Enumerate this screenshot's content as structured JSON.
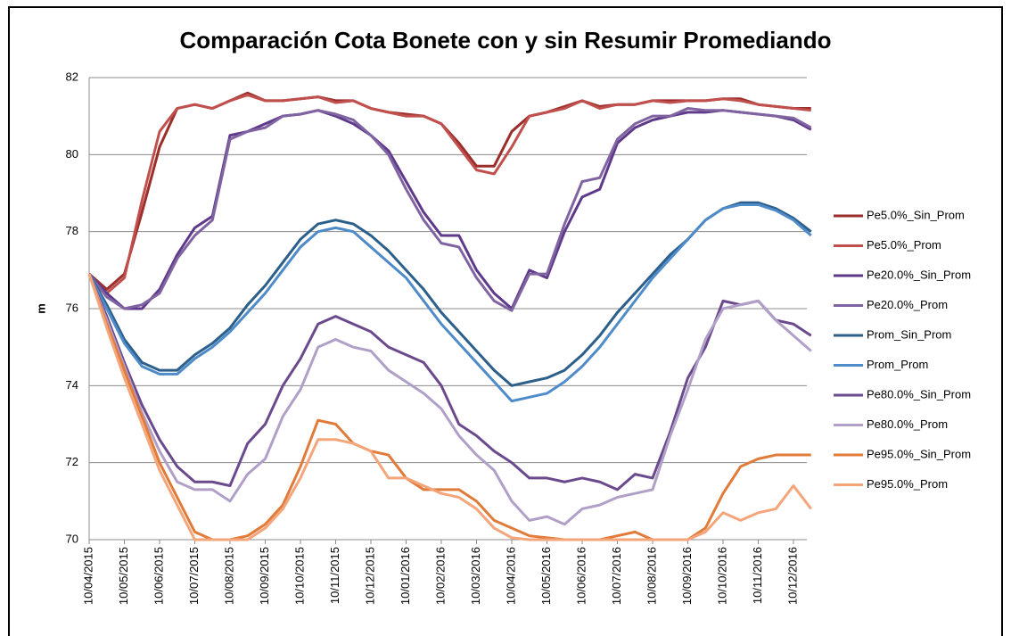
{
  "chart_data": {
    "type": "line",
    "title": "Comparación Cota Bonete con y sin Resumir Promediando",
    "ylabel": "m",
    "categories": [
      "10/04/2015",
      null,
      "10/05/2015",
      null,
      "10/06/2015",
      null,
      "10/07/2015",
      null,
      "10/08/2015",
      null,
      "10/09/2015",
      null,
      "10/10/2015",
      null,
      "10/11/2015",
      null,
      "10/12/2015",
      null,
      "10/01/2016",
      null,
      "10/02/2016",
      null,
      "10/03/2016",
      null,
      "10/04/2016",
      null,
      "10/05/2016",
      null,
      "10/06/2016",
      null,
      "10/07/2016",
      null,
      "10/08/2016",
      null,
      "10/09/2016",
      null,
      "10/10/2016",
      null,
      "10/11/2016",
      null,
      "10/12/2016",
      null
    ],
    "ylim": [
      70,
      82
    ],
    "yticks": [
      70,
      72,
      74,
      76,
      78,
      80,
      82
    ],
    "grid": true,
    "legend": "right",
    "series": [
      {
        "name": "Pe5.0%_Sin_Prom",
        "color": "#9b2d2a",
        "values": [
          76.9,
          76.5,
          76.9,
          78.5,
          80.2,
          81.2,
          81.3,
          81.2,
          81.4,
          81.6,
          81.4,
          81.4,
          81.45,
          81.5,
          81.4,
          81.4,
          81.2,
          81.1,
          81.05,
          81.0,
          80.8,
          80.3,
          79.7,
          79.7,
          80.6,
          81.0,
          81.1,
          81.25,
          81.4,
          81.25,
          81.3,
          81.3,
          81.4,
          81.4,
          81.4,
          81.4,
          81.45,
          81.45,
          81.3,
          81.25,
          81.2,
          81.2
        ]
      },
      {
        "name": "Pe5.0%_Prom",
        "color": "#c0504d",
        "values": [
          76.9,
          76.4,
          76.8,
          78.8,
          80.6,
          81.2,
          81.3,
          81.2,
          81.4,
          81.55,
          81.4,
          81.4,
          81.45,
          81.5,
          81.35,
          81.4,
          81.2,
          81.1,
          81.0,
          81.0,
          80.8,
          80.2,
          79.6,
          79.5,
          80.2,
          81.0,
          81.1,
          81.2,
          81.4,
          81.2,
          81.3,
          81.3,
          81.4,
          81.35,
          81.4,
          81.4,
          81.45,
          81.4,
          81.3,
          81.25,
          81.2,
          81.15
        ]
      },
      {
        "name": "Pe20.0%_Sin_Prom",
        "color": "#5f3a8a",
        "values": [
          76.9,
          76.4,
          76.0,
          76.0,
          76.5,
          77.4,
          78.1,
          78.4,
          80.5,
          80.6,
          80.8,
          81.0,
          81.05,
          81.15,
          81.0,
          80.8,
          80.5,
          80.1,
          79.3,
          78.5,
          77.9,
          77.9,
          77.0,
          76.4,
          76.0,
          77.0,
          76.8,
          78.0,
          78.9,
          79.1,
          80.3,
          80.7,
          80.9,
          81.0,
          81.1,
          81.1,
          81.15,
          81.1,
          81.05,
          81.0,
          80.9,
          80.65
        ]
      },
      {
        "name": "Pe20.0%_Prom",
        "color": "#8064a2",
        "values": [
          76.9,
          76.3,
          76.0,
          76.1,
          76.4,
          77.3,
          77.9,
          78.3,
          80.4,
          80.6,
          80.7,
          81.0,
          81.05,
          81.15,
          81.05,
          80.9,
          80.5,
          80.0,
          79.1,
          78.3,
          77.7,
          77.6,
          76.8,
          76.2,
          75.95,
          76.9,
          76.9,
          78.2,
          79.3,
          79.4,
          80.4,
          80.8,
          81.0,
          81.0,
          81.2,
          81.15,
          81.15,
          81.1,
          81.05,
          81.0,
          80.95,
          80.7
        ]
      },
      {
        "name": "Prom_Sin_Prom",
        "color": "#2c5f8a",
        "values": [
          76.9,
          76.1,
          75.2,
          74.6,
          74.4,
          74.4,
          74.8,
          75.1,
          75.5,
          76.1,
          76.6,
          77.2,
          77.8,
          78.2,
          78.3,
          78.2,
          77.9,
          77.5,
          77.0,
          76.5,
          75.9,
          75.4,
          74.9,
          74.4,
          74.0,
          74.1,
          74.2,
          74.4,
          74.8,
          75.3,
          75.9,
          76.4,
          76.9,
          77.4,
          77.8,
          78.3,
          78.6,
          78.75,
          78.75,
          78.6,
          78.35,
          78.0
        ]
      },
      {
        "name": "Prom_Prom",
        "color": "#4f8bc9",
        "values": [
          76.9,
          76.0,
          75.1,
          74.5,
          74.3,
          74.3,
          74.7,
          75.0,
          75.4,
          75.9,
          76.4,
          77.0,
          77.6,
          78.0,
          78.1,
          78.0,
          77.6,
          77.2,
          76.8,
          76.2,
          75.6,
          75.1,
          74.6,
          74.1,
          73.6,
          73.7,
          73.8,
          74.1,
          74.5,
          75.0,
          75.6,
          76.2,
          76.8,
          77.3,
          77.8,
          78.3,
          78.6,
          78.7,
          78.7,
          78.55,
          78.3,
          77.9
        ]
      },
      {
        "name": "Pe80.0%_Sin_Prom",
        "color": "#6a4a8c",
        "values": [
          76.9,
          75.8,
          74.6,
          73.5,
          72.6,
          71.9,
          71.5,
          71.5,
          71.4,
          72.5,
          73.0,
          74.0,
          74.7,
          75.6,
          75.8,
          75.6,
          75.4,
          75.0,
          74.8,
          74.6,
          74.0,
          73.0,
          72.7,
          72.3,
          72.0,
          71.6,
          71.6,
          71.5,
          71.6,
          71.5,
          71.3,
          71.7,
          71.6,
          72.8,
          74.2,
          75.0,
          76.2,
          76.1,
          76.2,
          75.7,
          75.6,
          75.3
        ]
      },
      {
        "name": "Pe80.0%_Prom",
        "color": "#b0a0c8",
        "values": [
          76.9,
          75.7,
          74.5,
          73.3,
          72.3,
          71.5,
          71.3,
          71.3,
          71.0,
          71.7,
          72.1,
          73.2,
          73.9,
          75.0,
          75.2,
          75.0,
          74.9,
          74.4,
          74.1,
          73.8,
          73.4,
          72.7,
          72.2,
          71.8,
          71.0,
          70.5,
          70.6,
          70.4,
          70.8,
          70.9,
          71.1,
          71.2,
          71.3,
          72.7,
          73.9,
          75.2,
          76.0,
          76.1,
          76.2,
          75.7,
          75.3,
          74.9
        ]
      },
      {
        "name": "Pe95.0%_Sin_Prom",
        "color": "#e07b39",
        "values": [
          76.9,
          75.6,
          74.4,
          73.2,
          72.0,
          71.1,
          70.2,
          70.0,
          70.0,
          70.1,
          70.4,
          70.9,
          71.9,
          73.1,
          73.0,
          72.5,
          72.3,
          72.2,
          71.6,
          71.3,
          71.3,
          71.3,
          71.0,
          70.5,
          70.3,
          70.1,
          70.05,
          70.0,
          70.0,
          70.0,
          70.1,
          70.2,
          70.0,
          70.0,
          70.0,
          70.3,
          71.2,
          71.9,
          72.1,
          72.2,
          72.2,
          72.2
        ]
      },
      {
        "name": "Pe95.0%_Prom",
        "color": "#f4a57a",
        "values": [
          76.9,
          75.5,
          74.2,
          73.0,
          71.8,
          70.9,
          70.0,
          70.0,
          70.0,
          70.0,
          70.3,
          70.8,
          71.6,
          72.6,
          72.6,
          72.5,
          72.3,
          71.6,
          71.6,
          71.4,
          71.2,
          71.1,
          70.8,
          70.3,
          70.05,
          70.0,
          70.0,
          70.0,
          70.0,
          70.0,
          70.0,
          70.0,
          70.0,
          70.0,
          70.0,
          70.2,
          70.7,
          70.5,
          70.7,
          70.8,
          71.4,
          70.8
        ]
      }
    ]
  }
}
